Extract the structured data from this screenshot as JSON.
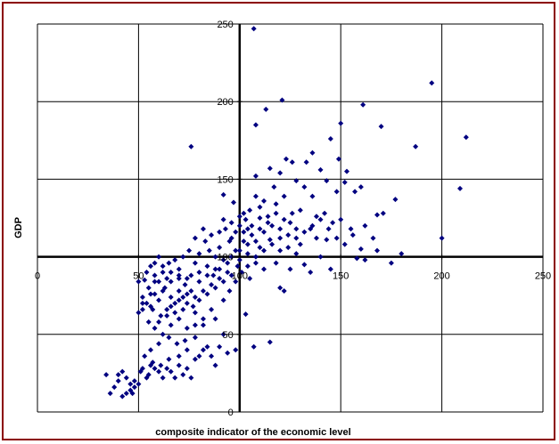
{
  "chart_data": {
    "type": "scatter",
    "title": "",
    "xlabel": "composite indicator of the economic level",
    "ylabel": "GDP",
    "xlim": [
      0,
      250
    ],
    "ylim": [
      0,
      250
    ],
    "xticks": [
      "0",
      "50",
      "100",
      "150",
      "200",
      "250"
    ],
    "yticks": [
      "0",
      "50",
      "100",
      "150",
      "200",
      "250"
    ],
    "crosshair": {
      "x": 100,
      "y": 100
    },
    "grid": true,
    "legend": "none",
    "marker_color": "#000080",
    "points": [
      [
        107,
        247
      ],
      [
        195,
        212
      ],
      [
        121,
        201
      ],
      [
        212,
        177
      ],
      [
        161,
        198
      ],
      [
        113,
        195
      ],
      [
        170,
        184
      ],
      [
        108,
        185
      ],
      [
        150,
        186
      ],
      [
        187,
        171
      ],
      [
        76,
        171
      ],
      [
        145,
        176
      ],
      [
        123,
        163
      ],
      [
        115,
        157
      ],
      [
        136,
        167
      ],
      [
        133,
        161
      ],
      [
        149,
        163
      ],
      [
        126,
        161
      ],
      [
        128,
        149
      ],
      [
        140,
        156
      ],
      [
        108,
        152
      ],
      [
        120,
        154
      ],
      [
        153,
        155
      ],
      [
        209,
        144
      ],
      [
        177,
        137
      ],
      [
        168,
        127
      ],
      [
        171,
        128
      ],
      [
        157,
        142
      ],
      [
        160,
        145
      ],
      [
        152,
        148
      ],
      [
        136,
        139
      ],
      [
        148,
        142
      ],
      [
        143,
        149
      ],
      [
        132,
        145
      ],
      [
        130,
        130
      ],
      [
        122,
        139
      ],
      [
        117,
        145
      ],
      [
        108,
        139
      ],
      [
        112,
        136
      ],
      [
        105,
        130
      ],
      [
        92,
        140
      ],
      [
        97,
        135
      ],
      [
        100,
        120
      ],
      [
        103,
        124
      ],
      [
        110,
        125
      ],
      [
        118,
        128
      ],
      [
        125,
        122
      ],
      [
        128,
        118
      ],
      [
        135,
        118
      ],
      [
        138,
        112
      ],
      [
        142,
        128
      ],
      [
        146,
        122
      ],
      [
        155,
        118
      ],
      [
        162,
        120
      ],
      [
        166,
        112
      ],
      [
        160,
        105
      ],
      [
        158,
        99
      ],
      [
        143,
        111
      ],
      [
        130,
        108
      ],
      [
        120,
        104
      ],
      [
        115,
        111
      ],
      [
        110,
        106
      ],
      [
        106,
        114
      ],
      [
        104,
        102
      ],
      [
        102,
        110
      ],
      [
        98,
        104
      ],
      [
        95,
        110
      ],
      [
        93,
        118
      ],
      [
        90,
        106
      ],
      [
        88,
        100
      ],
      [
        85,
        104
      ],
      [
        83,
        110
      ],
      [
        80,
        102
      ],
      [
        78,
        96
      ],
      [
        75,
        104
      ],
      [
        72,
        100
      ],
      [
        70,
        92
      ],
      [
        68,
        98
      ],
      [
        65,
        96
      ],
      [
        60,
        100
      ],
      [
        62,
        90
      ],
      [
        58,
        88
      ],
      [
        56,
        94
      ],
      [
        53,
        85
      ],
      [
        55,
        80
      ],
      [
        58,
        76
      ],
      [
        60,
        72
      ],
      [
        63,
        80
      ],
      [
        66,
        84
      ],
      [
        70,
        86
      ],
      [
        73,
        82
      ],
      [
        76,
        78
      ],
      [
        80,
        90
      ],
      [
        84,
        94
      ],
      [
        87,
        88
      ],
      [
        90,
        92
      ],
      [
        94,
        96
      ],
      [
        96,
        88
      ],
      [
        99,
        94
      ],
      [
        101,
        90
      ],
      [
        92,
        84
      ],
      [
        88,
        80
      ],
      [
        84,
        76
      ],
      [
        80,
        72
      ],
      [
        77,
        68
      ],
      [
        72,
        74
      ],
      [
        68,
        70
      ],
      [
        64,
        66
      ],
      [
        61,
        62
      ],
      [
        57,
        66
      ],
      [
        54,
        70
      ],
      [
        52,
        66
      ],
      [
        50,
        64
      ],
      [
        55,
        58
      ],
      [
        58,
        54
      ],
      [
        62,
        50
      ],
      [
        66,
        56
      ],
      [
        70,
        60
      ],
      [
        74,
        54
      ],
      [
        78,
        48
      ],
      [
        73,
        46
      ],
      [
        69,
        44
      ],
      [
        65,
        48
      ],
      [
        60,
        44
      ],
      [
        56,
        40
      ],
      [
        53,
        36
      ],
      [
        57,
        32
      ],
      [
        61,
        30
      ],
      [
        65,
        34
      ],
      [
        70,
        30
      ],
      [
        74,
        28
      ],
      [
        78,
        34
      ],
      [
        82,
        40
      ],
      [
        86,
        36
      ],
      [
        90,
        42
      ],
      [
        94,
        38
      ],
      [
        98,
        40
      ],
      [
        103,
        63
      ],
      [
        107,
        42
      ],
      [
        115,
        45
      ],
      [
        120,
        80
      ],
      [
        122,
        78
      ],
      [
        135,
        90
      ],
      [
        145,
        92
      ],
      [
        162,
        98
      ],
      [
        200,
        112
      ],
      [
        180,
        102
      ],
      [
        175,
        96
      ],
      [
        168,
        104
      ],
      [
        140,
        100
      ],
      [
        132,
        95
      ],
      [
        125,
        92
      ],
      [
        118,
        96
      ],
      [
        112,
        92
      ],
      [
        108,
        96
      ],
      [
        105,
        86
      ],
      [
        98,
        84
      ],
      [
        95,
        78
      ],
      [
        92,
        72
      ],
      [
        86,
        66
      ],
      [
        82,
        60
      ],
      [
        78,
        56
      ],
      [
        74,
        40
      ],
      [
        70,
        36
      ],
      [
        66,
        26
      ],
      [
        62,
        22
      ],
      [
        58,
        28
      ],
      [
        55,
        24
      ],
      [
        51,
        26
      ],
      [
        48,
        20
      ],
      [
        46,
        18
      ],
      [
        44,
        22
      ],
      [
        42,
        26
      ],
      [
        40,
        20
      ],
      [
        38,
        16
      ],
      [
        36,
        12
      ],
      [
        34,
        24
      ],
      [
        44,
        12
      ],
      [
        46,
        14
      ],
      [
        48,
        16
      ],
      [
        50,
        18
      ],
      [
        52,
        28
      ],
      [
        54,
        22
      ],
      [
        47,
        12
      ],
      [
        42,
        10
      ],
      [
        40,
        24
      ],
      [
        56,
        30
      ],
      [
        60,
        26
      ],
      [
        64,
        28
      ],
      [
        68,
        22
      ],
      [
        72,
        24
      ],
      [
        76,
        22
      ],
      [
        80,
        36
      ],
      [
        84,
        42
      ],
      [
        88,
        30
      ],
      [
        92,
        50
      ],
      [
        88,
        60
      ],
      [
        82,
        56
      ],
      [
        78,
        64
      ],
      [
        74,
        70
      ],
      [
        70,
        78
      ],
      [
        66,
        74
      ],
      [
        62,
        78
      ],
      [
        58,
        84
      ],
      [
        54,
        90
      ],
      [
        50,
        84
      ],
      [
        52,
        74
      ],
      [
        56,
        68
      ],
      [
        60,
        58
      ],
      [
        64,
        62
      ],
      [
        68,
        64
      ],
      [
        72,
        66
      ],
      [
        76,
        88
      ],
      [
        80,
        84
      ],
      [
        84,
        88
      ],
      [
        88,
        92
      ],
      [
        92,
        98
      ],
      [
        96,
        100
      ],
      [
        100,
        104
      ],
      [
        104,
        108
      ],
      [
        108,
        110
      ],
      [
        112,
        116
      ],
      [
        116,
        120
      ],
      [
        120,
        118
      ],
      [
        124,
        114
      ],
      [
        128,
        112
      ],
      [
        132,
        116
      ],
      [
        136,
        120
      ],
      [
        140,
        124
      ],
      [
        144,
        118
      ],
      [
        148,
        112
      ],
      [
        152,
        108
      ],
      [
        156,
        114
      ],
      [
        150,
        124
      ],
      [
        138,
        126
      ],
      [
        126,
        128
      ],
      [
        114,
        122
      ],
      [
        102,
        116
      ],
      [
        96,
        112
      ],
      [
        90,
        116
      ],
      [
        86,
        114
      ],
      [
        82,
        118
      ],
      [
        78,
        112
      ],
      [
        100,
        98
      ],
      [
        104,
        94
      ],
      [
        108,
        100
      ],
      [
        112,
        104
      ],
      [
        116,
        108
      ],
      [
        120,
        112
      ],
      [
        124,
        106
      ],
      [
        128,
        102
      ],
      [
        94,
        90
      ],
      [
        90,
        86
      ],
      [
        86,
        82
      ],
      [
        82,
        78
      ],
      [
        78,
        74
      ],
      [
        74,
        86
      ],
      [
        70,
        88
      ],
      [
        66,
        90
      ],
      [
        62,
        94
      ],
      [
        58,
        96
      ],
      [
        64,
        86
      ],
      [
        60,
        84
      ],
      [
        56,
        76
      ],
      [
        52,
        70
      ],
      [
        66,
        68
      ],
      [
        70,
        72
      ],
      [
        74,
        76
      ],
      [
        100,
        126
      ],
      [
        104,
        118
      ],
      [
        110,
        132
      ],
      [
        114,
        126
      ],
      [
        118,
        134
      ],
      [
        122,
        124
      ],
      [
        96,
        122
      ],
      [
        92,
        124
      ],
      [
        106,
        120
      ],
      [
        110,
        118
      ],
      [
        98,
        116
      ],
      [
        102,
        128
      ]
    ]
  }
}
